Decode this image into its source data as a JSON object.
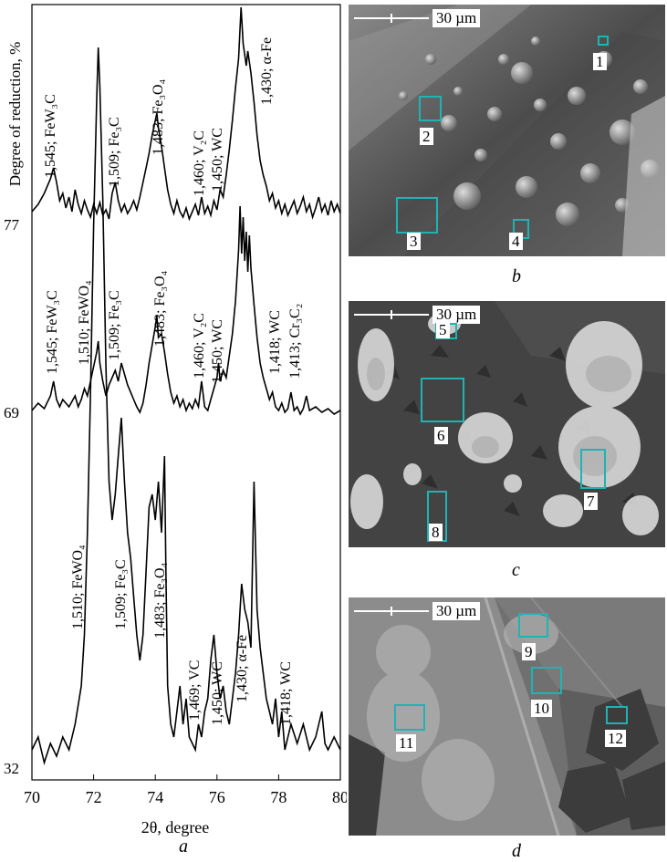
{
  "figure": {
    "panel_a_letter": "a",
    "panel_b_letter": "b",
    "panel_c_letter": "c",
    "panel_d_letter": "d",
    "scale_bar_label": "30 µm"
  },
  "chart_data": {
    "type": "line",
    "xlabel": "2θ, degree",
    "ylabel": "Degree of reduction, %",
    "xlim": [
      70,
      80
    ],
    "x_ticks": [
      70,
      72,
      74,
      76,
      78,
      80
    ],
    "series": [
      {
        "name": "77",
        "offset_label": "77",
        "points": [
          [
            70.0,
            0.06
          ],
          [
            70.2,
            0.1
          ],
          [
            70.4,
            0.16
          ],
          [
            70.6,
            0.24
          ],
          [
            70.7,
            0.3
          ],
          [
            70.8,
            0.22
          ],
          [
            70.9,
            0.12
          ],
          [
            71.0,
            0.16
          ],
          [
            71.1,
            0.08
          ],
          [
            71.2,
            0.14
          ],
          [
            71.3,
            0.06
          ],
          [
            71.4,
            0.18
          ],
          [
            71.5,
            0.1
          ],
          [
            71.6,
            0.05
          ],
          [
            71.7,
            0.12
          ],
          [
            71.8,
            0.07
          ],
          [
            71.9,
            0.03
          ],
          [
            72.0,
            0.1
          ],
          [
            72.1,
            0.05
          ],
          [
            72.2,
            0.11
          ],
          [
            72.3,
            0.04
          ],
          [
            72.4,
            0.07
          ],
          [
            72.5,
            0.02
          ],
          [
            72.6,
            0.16
          ],
          [
            72.7,
            0.22
          ],
          [
            72.8,
            0.12
          ],
          [
            72.9,
            0.06
          ],
          [
            73.0,
            0.1
          ],
          [
            73.1,
            0.05
          ],
          [
            73.2,
            0.08
          ],
          [
            73.3,
            0.12
          ],
          [
            73.4,
            0.07
          ],
          [
            73.5,
            0.14
          ],
          [
            73.6,
            0.22
          ],
          [
            73.7,
            0.3
          ],
          [
            73.8,
            0.38
          ],
          [
            73.9,
            0.48
          ],
          [
            74.0,
            0.56
          ],
          [
            74.05,
            0.6
          ],
          [
            74.1,
            0.52
          ],
          [
            74.2,
            0.42
          ],
          [
            74.3,
            0.3
          ],
          [
            74.4,
            0.18
          ],
          [
            74.5,
            0.1
          ],
          [
            74.6,
            0.05
          ],
          [
            74.7,
            0.12
          ],
          [
            74.8,
            0.06
          ],
          [
            74.9,
            0.03
          ],
          [
            75.0,
            0.08
          ],
          [
            75.1,
            0.02
          ],
          [
            75.2,
            0.06
          ],
          [
            75.3,
            0.1
          ],
          [
            75.4,
            0.04
          ],
          [
            75.5,
            0.14
          ],
          [
            75.6,
            0.05
          ],
          [
            75.7,
            0.09
          ],
          [
            75.8,
            0.04
          ],
          [
            75.9,
            0.12
          ],
          [
            76.0,
            0.07
          ],
          [
            76.1,
            0.18
          ],
          [
            76.2,
            0.14
          ],
          [
            76.3,
            0.26
          ],
          [
            76.4,
            0.4
          ],
          [
            76.5,
            0.56
          ],
          [
            76.6,
            0.74
          ],
          [
            76.7,
            0.9
          ],
          [
            76.78,
            1.18
          ],
          [
            76.85,
            0.98
          ],
          [
            76.95,
            0.86
          ],
          [
            77.0,
            0.94
          ],
          [
            77.1,
            0.82
          ],
          [
            77.2,
            0.66
          ],
          [
            77.3,
            0.48
          ],
          [
            77.4,
            0.34
          ],
          [
            77.5,
            0.26
          ],
          [
            77.6,
            0.2
          ],
          [
            77.7,
            0.12
          ],
          [
            77.8,
            0.16
          ],
          [
            77.9,
            0.08
          ],
          [
            78.0,
            0.12
          ],
          [
            78.1,
            0.05
          ],
          [
            78.2,
            0.1
          ],
          [
            78.3,
            0.04
          ],
          [
            78.4,
            0.08
          ],
          [
            78.5,
            0.12
          ],
          [
            78.6,
            0.05
          ],
          [
            78.7,
            0.09
          ],
          [
            78.8,
            0.14
          ],
          [
            78.9,
            0.06
          ],
          [
            79.0,
            0.1
          ],
          [
            79.1,
            0.03
          ],
          [
            79.2,
            0.08
          ],
          [
            79.3,
            0.14
          ],
          [
            79.4,
            0.06
          ],
          [
            79.5,
            0.1
          ],
          [
            79.6,
            0.04
          ],
          [
            79.7,
            0.12
          ],
          [
            79.8,
            0.06
          ],
          [
            79.9,
            0.1
          ],
          [
            80.0,
            0.05
          ]
        ],
        "annotations": [
          "1,545; FeW₃C",
          "1,509; Fe₃C",
          "1,483; Fe₃O₄",
          "1,460; V₂C",
          "1,450; WC",
          "1,430; α-Fe"
        ]
      },
      {
        "name": "69",
        "offset_label": "69",
        "points": [
          [
            70.0,
            0.04
          ],
          [
            70.2,
            0.08
          ],
          [
            70.4,
            0.05
          ],
          [
            70.6,
            0.12
          ],
          [
            70.7,
            0.2
          ],
          [
            70.8,
            0.1
          ],
          [
            70.9,
            0.06
          ],
          [
            71.0,
            0.1
          ],
          [
            71.2,
            0.06
          ],
          [
            71.4,
            0.12
          ],
          [
            71.5,
            0.06
          ],
          [
            71.6,
            0.1
          ],
          [
            71.7,
            0.16
          ],
          [
            71.8,
            0.12
          ],
          [
            71.9,
            0.2
          ],
          [
            72.0,
            0.28
          ],
          [
            72.1,
            0.36
          ],
          [
            72.15,
            0.42
          ],
          [
            72.2,
            0.3
          ],
          [
            72.3,
            0.2
          ],
          [
            72.4,
            0.12
          ],
          [
            72.5,
            0.18
          ],
          [
            72.6,
            0.22
          ],
          [
            72.7,
            0.26
          ],
          [
            72.8,
            0.2
          ],
          [
            72.9,
            0.3
          ],
          [
            73.0,
            0.24
          ],
          [
            73.1,
            0.18
          ],
          [
            73.2,
            0.14
          ],
          [
            73.3,
            0.1
          ],
          [
            73.4,
            0.06
          ],
          [
            73.5,
            0.03
          ],
          [
            73.6,
            0.08
          ],
          [
            73.7,
            0.18
          ],
          [
            73.8,
            0.3
          ],
          [
            73.9,
            0.4
          ],
          [
            74.0,
            0.5
          ],
          [
            74.05,
            0.56
          ],
          [
            74.1,
            0.44
          ],
          [
            74.2,
            0.46
          ],
          [
            74.3,
            0.36
          ],
          [
            74.4,
            0.24
          ],
          [
            74.5,
            0.14
          ],
          [
            74.6,
            0.08
          ],
          [
            74.7,
            0.12
          ],
          [
            74.8,
            0.06
          ],
          [
            74.9,
            0.1
          ],
          [
            75.0,
            0.04
          ],
          [
            75.1,
            0.08
          ],
          [
            75.2,
            0.05
          ],
          [
            75.3,
            0.1
          ],
          [
            75.4,
            0.06
          ],
          [
            75.5,
            0.2
          ],
          [
            75.6,
            0.06
          ],
          [
            75.7,
            0.04
          ],
          [
            75.8,
            0.1
          ],
          [
            75.9,
            0.16
          ],
          [
            76.0,
            0.22
          ],
          [
            76.05,
            0.3
          ],
          [
            76.1,
            0.2
          ],
          [
            76.2,
            0.26
          ],
          [
            76.3,
            0.22
          ],
          [
            76.4,
            0.34
          ],
          [
            76.5,
            0.46
          ],
          [
            76.6,
            0.64
          ],
          [
            76.7,
            0.92
          ],
          [
            76.75,
            1.16
          ],
          [
            76.8,
            0.9
          ],
          [
            76.85,
            1.1
          ],
          [
            76.9,
            0.86
          ],
          [
            76.95,
            1.02
          ],
          [
            77.0,
            0.8
          ],
          [
            77.05,
            1.0
          ],
          [
            77.1,
            0.82
          ],
          [
            77.2,
            0.62
          ],
          [
            77.3,
            0.44
          ],
          [
            77.4,
            0.3
          ],
          [
            77.5,
            0.22
          ],
          [
            77.6,
            0.16
          ],
          [
            77.7,
            0.1
          ],
          [
            77.8,
            0.14
          ],
          [
            77.9,
            0.06
          ],
          [
            78.0,
            0.04
          ],
          [
            78.1,
            0.08
          ],
          [
            78.2,
            0.03
          ],
          [
            78.3,
            0.05
          ],
          [
            78.4,
            0.14
          ],
          [
            78.5,
            0.04
          ],
          [
            78.6,
            0.06
          ],
          [
            78.7,
            0.02
          ],
          [
            78.8,
            0.05
          ],
          [
            78.9,
            0.12
          ],
          [
            79.0,
            0.04
          ],
          [
            79.2,
            0.06
          ],
          [
            79.4,
            0.03
          ],
          [
            79.6,
            0.05
          ],
          [
            79.8,
            0.02
          ],
          [
            80.0,
            0.04
          ]
        ],
        "annotations": [
          "1,545; FeW₃C",
          "1,510; FeWO₄",
          "1,509; Fe₃C",
          "1,483; Fe₃O₄",
          "1,460; V₂C",
          "1,450; WC",
          "1,418; WC",
          "1,413; Cr₃C₂"
        ]
      },
      {
        "name": "32",
        "offset_label": "32",
        "points": [
          [
            70.0,
            0.04
          ],
          [
            70.2,
            0.06
          ],
          [
            70.4,
            0.02
          ],
          [
            70.6,
            0.05
          ],
          [
            70.8,
            0.03
          ],
          [
            71.0,
            0.06
          ],
          [
            71.2,
            0.04
          ],
          [
            71.4,
            0.08
          ],
          [
            71.6,
            0.14
          ],
          [
            71.7,
            0.22
          ],
          [
            71.8,
            0.38
          ],
          [
            71.9,
            0.6
          ],
          [
            72.0,
            0.86
          ],
          [
            72.1,
            1.06
          ],
          [
            72.15,
            1.14
          ],
          [
            72.2,
            1.08
          ],
          [
            72.3,
            0.9
          ],
          [
            72.4,
            0.64
          ],
          [
            72.5,
            0.46
          ],
          [
            72.6,
            0.4
          ],
          [
            72.7,
            0.44
          ],
          [
            72.8,
            0.5
          ],
          [
            72.9,
            0.56
          ],
          [
            73.0,
            0.46
          ],
          [
            73.1,
            0.38
          ],
          [
            73.2,
            0.34
          ],
          [
            73.3,
            0.28
          ],
          [
            73.4,
            0.22
          ],
          [
            73.5,
            0.18
          ],
          [
            73.6,
            0.22
          ],
          [
            73.7,
            0.32
          ],
          [
            73.8,
            0.42
          ],
          [
            73.9,
            0.44
          ],
          [
            74.0,
            0.4
          ],
          [
            74.1,
            0.46
          ],
          [
            74.2,
            0.38
          ],
          [
            74.3,
            0.5
          ],
          [
            74.35,
            0.3
          ],
          [
            74.4,
            0.14
          ],
          [
            74.5,
            0.08
          ],
          [
            74.6,
            0.06
          ],
          [
            74.7,
            0.1
          ],
          [
            74.8,
            0.14
          ],
          [
            74.9,
            0.08
          ],
          [
            75.0,
            0.12
          ],
          [
            75.1,
            0.06
          ],
          [
            75.2,
            0.05
          ],
          [
            75.3,
            0.04
          ],
          [
            75.4,
            0.08
          ],
          [
            75.5,
            0.06
          ],
          [
            75.6,
            0.1
          ],
          [
            75.7,
            0.12
          ],
          [
            75.8,
            0.18
          ],
          [
            75.9,
            0.22
          ],
          [
            76.0,
            0.16
          ],
          [
            76.1,
            0.12
          ],
          [
            76.2,
            0.14
          ],
          [
            76.3,
            0.1
          ],
          [
            76.4,
            0.08
          ],
          [
            76.5,
            0.12
          ],
          [
            76.6,
            0.16
          ],
          [
            76.7,
            0.22
          ],
          [
            76.8,
            0.3
          ],
          [
            76.9,
            0.26
          ],
          [
            77.0,
            0.24
          ],
          [
            77.1,
            0.2
          ],
          [
            77.2,
            0.46
          ],
          [
            77.3,
            0.26
          ],
          [
            77.4,
            0.2
          ],
          [
            77.5,
            0.16
          ],
          [
            77.6,
            0.12
          ],
          [
            77.7,
            0.1
          ],
          [
            77.8,
            0.08
          ],
          [
            77.9,
            0.12
          ],
          [
            78.0,
            0.06
          ],
          [
            78.1,
            0.1
          ],
          [
            78.2,
            0.04
          ],
          [
            78.4,
            0.08
          ],
          [
            78.6,
            0.05
          ],
          [
            78.8,
            0.08
          ],
          [
            79.0,
            0.04
          ],
          [
            79.2,
            0.06
          ],
          [
            79.4,
            0.1
          ],
          [
            79.5,
            0.05
          ],
          [
            79.6,
            0.04
          ],
          [
            79.8,
            0.06
          ],
          [
            80.0,
            0.04
          ]
        ],
        "annotations": [
          "1,510; FeWO₄",
          "1,509; Fe₃C",
          "1,483; Fe₃O₄",
          "1,469; VC",
          "1,450; WC",
          "1,430; α-Fe",
          "1,418; WC"
        ]
      }
    ]
  },
  "micrographs": {
    "b": {
      "regions": [
        "1",
        "2",
        "3",
        "4"
      ]
    },
    "c": {
      "regions": [
        "5",
        "6",
        "7",
        "8"
      ]
    },
    "d": {
      "regions": [
        "9",
        "10",
        "11",
        "12"
      ]
    }
  }
}
